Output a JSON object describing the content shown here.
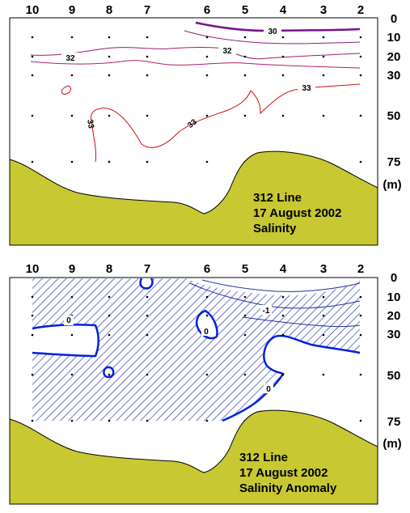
{
  "chart_data": [
    {
      "type": "contour",
      "stations": [
        "10",
        "9",
        "8",
        "7",
        "6",
        "5",
        "4",
        "3",
        "2"
      ],
      "depth_ticks": [
        "0",
        "10",
        "20",
        "30",
        "50",
        "75"
      ],
      "depth_unit": "(m)",
      "info_lines": [
        "312 Line",
        "17 August 2002",
        "Salinity"
      ],
      "contour_labels": [
        "30",
        "32",
        "32",
        "33",
        "33",
        "33"
      ],
      "colors": {
        "bottom": "#c8c832",
        "contour_30": "#800080",
        "contour_32": "#a0207a",
        "contour_33": "#d01010"
      }
    },
    {
      "type": "contour",
      "stations": [
        "10",
        "9",
        "8",
        "7",
        "6",
        "5",
        "4",
        "3",
        "2"
      ],
      "depth_ticks": [
        "0",
        "10",
        "20",
        "30",
        "50",
        "75"
      ],
      "depth_unit": "(m)",
      "info_lines": [
        "312 Line",
        "17 August 2002",
        "Salinity Anomaly"
      ],
      "contour_labels": [
        "0",
        "0",
        "0",
        "-1"
      ],
      "colors": {
        "bottom": "#c8c832",
        "zero_contour": "#0020e0",
        "hatch": "#2030a0"
      }
    }
  ]
}
